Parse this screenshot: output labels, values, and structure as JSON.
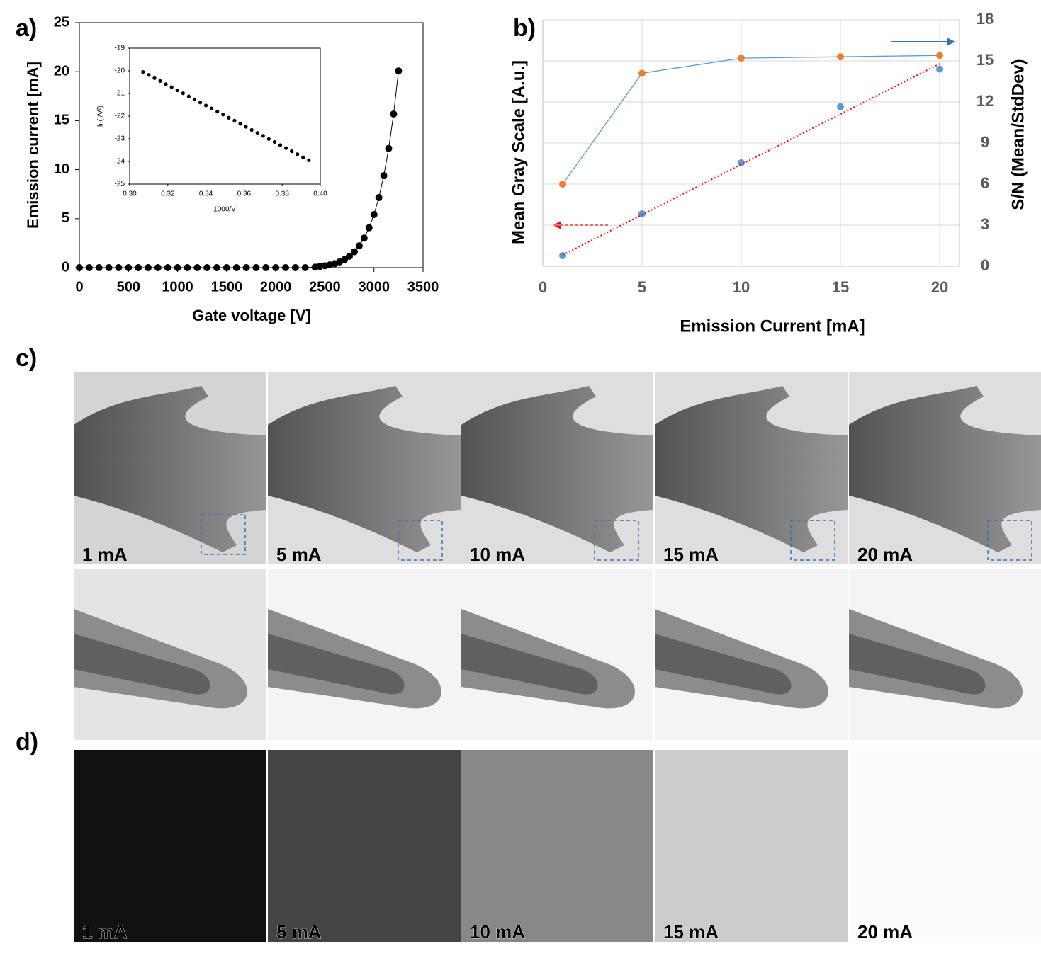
{
  "panel_labels": [
    "a)",
    "b)",
    "c)",
    "d)"
  ],
  "chart_data": [
    {
      "type": "scatter",
      "xlabel": "Gate voltage [V]",
      "ylabel": "Emission current [mA]",
      "color": "#000000",
      "line": true,
      "x": [
        0,
        100,
        200,
        300,
        400,
        500,
        600,
        700,
        800,
        900,
        1000,
        1100,
        1200,
        1300,
        1400,
        1500,
        1600,
        1700,
        1800,
        1900,
        2000,
        2100,
        2200,
        2300,
        2400,
        2450,
        2500,
        2550,
        2600,
        2650,
        2700,
        2750,
        2800,
        2850,
        2900,
        2950,
        3000,
        3050,
        3100,
        3150,
        3200,
        3250
      ],
      "values": [
        0,
        0,
        0,
        0,
        0,
        0,
        0,
        0,
        0,
        0,
        0,
        0,
        0,
        0,
        0,
        0,
        0,
        0,
        0,
        0,
        0,
        0,
        0,
        0,
        0.05,
        0.13,
        0.19,
        0.28,
        0.41,
        0.59,
        0.83,
        1.17,
        1.62,
        2.23,
        3.02,
        4.07,
        5.42,
        7.15,
        9.38,
        12.17,
        15.68,
        20.08
      ],
      "xlim": [
        0,
        3500
      ],
      "xticks": [
        0,
        500,
        1000,
        1500,
        2000,
        2500,
        3000,
        3500
      ],
      "ylim": [
        0,
        25
      ],
      "yticks": [
        0,
        5,
        10,
        15,
        20,
        25
      ]
    },
    {
      "type": "scatter",
      "xlabel": "1000/V",
      "ylabel": "ln(I/V²)",
      "color": "#000000",
      "line": false,
      "x": [
        0.307,
        0.31,
        0.313,
        0.316,
        0.319,
        0.322,
        0.325,
        0.328,
        0.331,
        0.334,
        0.337,
        0.34,
        0.343,
        0.346,
        0.349,
        0.352,
        0.355,
        0.358,
        0.361,
        0.364,
        0.367,
        0.37,
        0.373,
        0.376,
        0.379,
        0.382,
        0.385,
        0.388,
        0.391,
        0.394
      ],
      "values": [
        -20.05,
        -20.18,
        -20.32,
        -20.45,
        -20.59,
        -20.72,
        -20.86,
        -20.99,
        -21.13,
        -21.26,
        -21.4,
        -21.53,
        -21.66,
        -21.8,
        -21.93,
        -22.07,
        -22.2,
        -22.34,
        -22.47,
        -22.61,
        -22.74,
        -22.87,
        -23.01,
        -23.14,
        -23.28,
        -23.41,
        -23.55,
        -23.68,
        -23.82,
        -23.95
      ],
      "xlim": [
        0.3,
        0.4
      ],
      "xticks": [
        {
          "value": 0.3,
          "label": "0.30"
        },
        {
          "value": 0.32,
          "label": "0.32"
        },
        {
          "value": 0.34,
          "label": "0.34"
        },
        {
          "value": 0.36,
          "label": "0.36"
        },
        {
          "value": 0.38,
          "label": "0.38"
        },
        {
          "value": 0.4,
          "label": "0.40"
        }
      ],
      "ylim": [
        -25,
        -19
      ],
      "yticks": [
        -25,
        -24,
        -23,
        -22,
        -21,
        -20,
        -19
      ]
    },
    {
      "type": "line",
      "xlabel": "Emission Current [mA]",
      "ylabel": "Mean Gray Scale [A.u.]",
      "y2label": "S/N (Mean/StdDev)",
      "grid": true,
      "x": [
        1,
        5,
        10,
        15,
        20
      ],
      "xlim": [
        0,
        21
      ],
      "xticks": [
        0,
        5,
        10,
        15,
        20
      ],
      "ylim": [
        0,
        7
      ],
      "y2lim": [
        0,
        18
      ],
      "y2ticks": [
        0,
        3,
        6,
        9,
        12,
        15,
        18
      ],
      "series": [
        {
          "color": "#5b9bd5",
          "marker": true,
          "line": false,
          "values": [
            0.3,
            1.49,
            2.94,
            4.53,
            5.6
          ]
        },
        {
          "color": "#ed7d31",
          "line_color": "#5b9bd5",
          "axis": "y2",
          "marker": true,
          "line": true,
          "values": [
            6.0,
            14.1,
            15.2,
            15.3,
            15.4
          ]
        },
        {
          "color": "#ff0000",
          "marker": false,
          "line": true,
          "dash": true,
          "x": [
            1,
            20
          ],
          "values": [
            0.32,
            5.75
          ]
        }
      ]
    }
  ],
  "xray_images": {
    "labels": [
      "1 mA",
      "5 mA",
      "10 mA",
      "15 mA",
      "20 mA"
    ]
  },
  "flat_field": {
    "labels": [
      "1 mA",
      "5 mA",
      "10 mA",
      "15 mA",
      "20 mA"
    ],
    "colors": [
      "#111111",
      "#444444",
      "#888888",
      "#cccccc",
      "#fcfcfc"
    ]
  }
}
